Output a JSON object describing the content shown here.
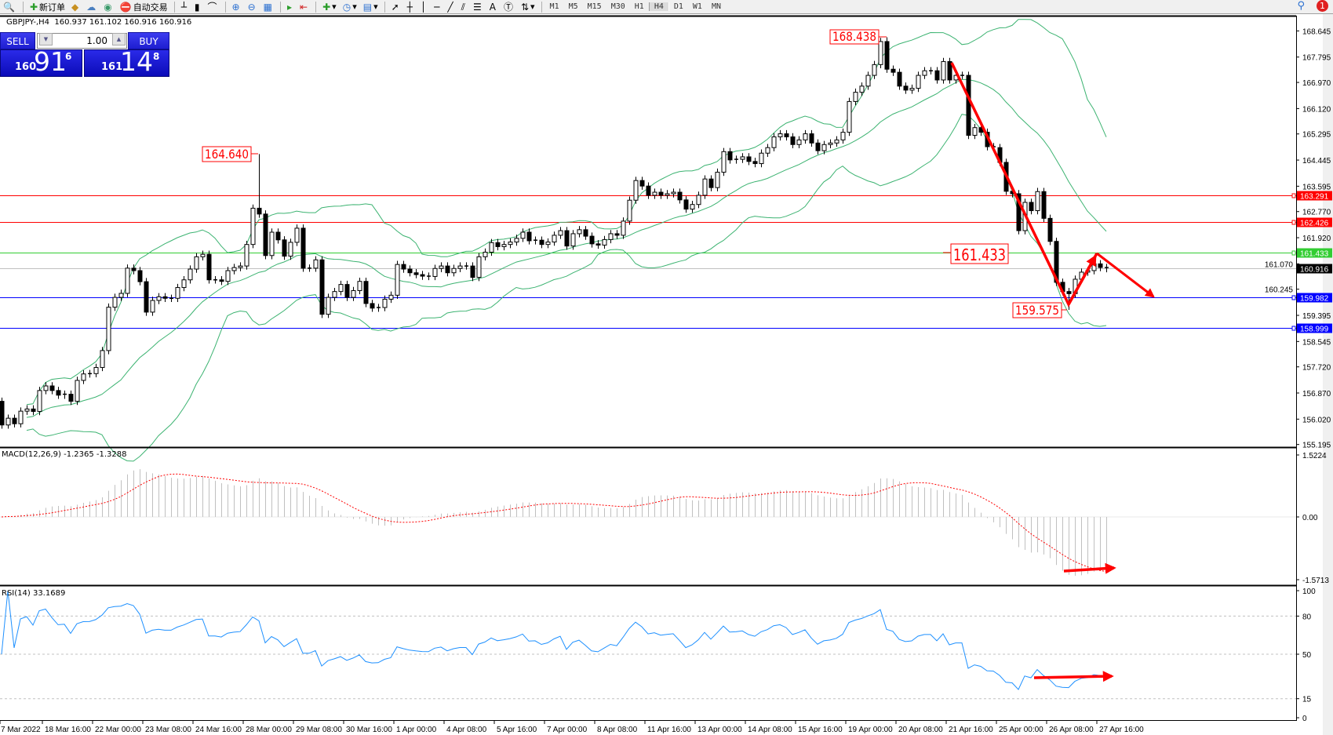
{
  "toolbar": {
    "new_order": "新订单",
    "auto_trading": "自动交易",
    "timeframes": [
      "M1",
      "M5",
      "M15",
      "M30",
      "H1",
      "H4",
      "D1",
      "W1",
      "MN"
    ],
    "active_timeframe": "H4",
    "notification_count": "1"
  },
  "chart_header": "GBPJPY-,H4  160.937 161.102 160.916 160.916",
  "one_click": {
    "sell_label": "SELL",
    "buy_label": "BUY",
    "lot": "1.00",
    "sell_price": {
      "prefix": "160",
      "main": "91",
      "sup": "6"
    },
    "buy_price": {
      "prefix": "161",
      "main": "14",
      "sup": "8"
    }
  },
  "indicators": {
    "macd_label": "MACD(12,26,9) -1.2365 -1.3288",
    "rsi_label": "RSI(14) 33.1689"
  },
  "price_axis": [
    "168.645",
    "167.795",
    "166.970",
    "166.120",
    "165.295",
    "164.445",
    "163.595",
    "162.770",
    "161.920",
    "161.070",
    "160.245",
    "159.395",
    "158.545",
    "157.720",
    "156.870",
    "156.020",
    "155.195"
  ],
  "macd_axis": [
    "1.5224",
    "0.00",
    "-1.5713"
  ],
  "rsi_axis": [
    "100",
    "80",
    "50",
    "15",
    "0"
  ],
  "date_axis": [
    "7 Mar 2022",
    "18 Mar 16:00",
    "22 Mar 00:00",
    "23 Mar 08:00",
    "24 Mar 16:00",
    "28 Mar 00:00",
    "29 Mar 08:00",
    "30 Mar 16:00",
    "1 Apr 00:00",
    "4 Apr 08:00",
    "5 Apr 16:00",
    "7 Apr 00:00",
    "8 Apr 08:00",
    "11 Apr 16:00",
    "13 Apr 00:00",
    "14 Apr 08:00",
    "15 Apr 16:00",
    "19 Apr 00:00",
    "20 Apr 08:00",
    "21 Apr 16:00",
    "25 Apr 00:00",
    "26 Apr 08:00",
    "27 Apr 16:00"
  ],
  "levels": [
    {
      "price": 163.291,
      "label": "163.291",
      "color": "#ff0000"
    },
    {
      "price": 162.426,
      "label": "162.426",
      "color": "#ff0000"
    },
    {
      "price": 161.433,
      "label": "161.433",
      "color": "#32cd32"
    },
    {
      "price": 160.916,
      "label": "160.916",
      "color": "#c0c0c0",
      "label_bg": "#000000"
    },
    {
      "price": 159.982,
      "label": "159.982",
      "color": "#0000ff"
    },
    {
      "price": 158.999,
      "label": "158.999",
      "color": "#0000ff"
    }
  ],
  "annotations": [
    "168.438",
    "164.640",
    "161.433",
    "159.575"
  ],
  "colors": {
    "bands": "#3cb371",
    "macd_hist": "#c0c0c0",
    "macd_signal": "#ff0000",
    "rsi": "#1e90ff",
    "drawings": "#ff0000"
  },
  "chart_data": {
    "type": "candlestick",
    "symbol": "GBPJPY-",
    "timeframe": "H4",
    "ylim": [
      155.195,
      168.645
    ],
    "first_open": 156.6,
    "closes": [
      155.83,
      156.05,
      155.87,
      156.28,
      156.35,
      156.27,
      156.95,
      157.1,
      156.95,
      156.8,
      156.83,
      156.6,
      157.28,
      157.49,
      157.5,
      157.7,
      158.25,
      159.66,
      159.98,
      160.11,
      160.93,
      160.85,
      160.49,
      159.5,
      159.88,
      160.0,
      159.95,
      159.95,
      160.3,
      160.55,
      160.9,
      161.3,
      161.38,
      160.55,
      160.55,
      160.5,
      160.85,
      160.95,
      161.0,
      161.7,
      162.88,
      162.69,
      161.34,
      162.1,
      161.85,
      161.32,
      161.77,
      162.23,
      160.93,
      160.93,
      161.2,
      159.43,
      159.98,
      160.17,
      160.4,
      159.98,
      160.2,
      160.5,
      159.78,
      159.63,
      159.65,
      159.92,
      160.05,
      161.05,
      160.9,
      160.78,
      160.72,
      160.67,
      160.66,
      160.92,
      161.0,
      160.78,
      160.92,
      161.0,
      161.0,
      160.63,
      161.3,
      161.45,
      161.76,
      161.63,
      161.7,
      161.78,
      161.9,
      162.1,
      161.82,
      161.84,
      161.7,
      161.78,
      162.0,
      162.15,
      161.65,
      162.05,
      162.18,
      161.97,
      161.72,
      161.68,
      161.86,
      162.05,
      162.0,
      162.46,
      163.14,
      163.78,
      163.6,
      163.3,
      163.4,
      163.3,
      163.35,
      163.4,
      163.15,
      162.85,
      163.0,
      163.3,
      163.83,
      163.55,
      164.05,
      164.72,
      164.45,
      164.47,
      164.55,
      164.4,
      164.33,
      164.67,
      164.85,
      165.2,
      165.3,
      165.2,
      164.95,
      165.1,
      165.3,
      165.0,
      164.75,
      164.95,
      165.0,
      165.1,
      165.35,
      166.35,
      166.65,
      166.85,
      167.2,
      167.55,
      168.3,
      167.4,
      167.3,
      166.85,
      166.72,
      166.78,
      167.2,
      167.35,
      167.35,
      167.05,
      167.65,
      167.05,
      167.2,
      167.2,
      165.25,
      165.5,
      165.35,
      164.88,
      164.85,
      164.37,
      163.43,
      163.35,
      162.15,
      163.07,
      162.8,
      163.42,
      162.55,
      161.8,
      160.47,
      160.17,
      160.1,
      160.57,
      160.8,
      160.85,
      161.07,
      160.95,
      160.916
    ],
    "marked_extremes": [
      {
        "bar": 41,
        "high": 164.64
      },
      {
        "bar": 141,
        "high": 168.438
      },
      {
        "bar": 170,
        "low": 159.575
      }
    ],
    "indicators": [
      "Bollinger Bands",
      "MACD(12,26,9)",
      "RSI(14)"
    ],
    "macd_ylim": [
      -1.5713,
      1.5224
    ],
    "rsi_levels": [
      80,
      50,
      15
    ],
    "last_macd": -1.2365,
    "last_signal": -1.3288,
    "last_rsi": 33.1689
  }
}
